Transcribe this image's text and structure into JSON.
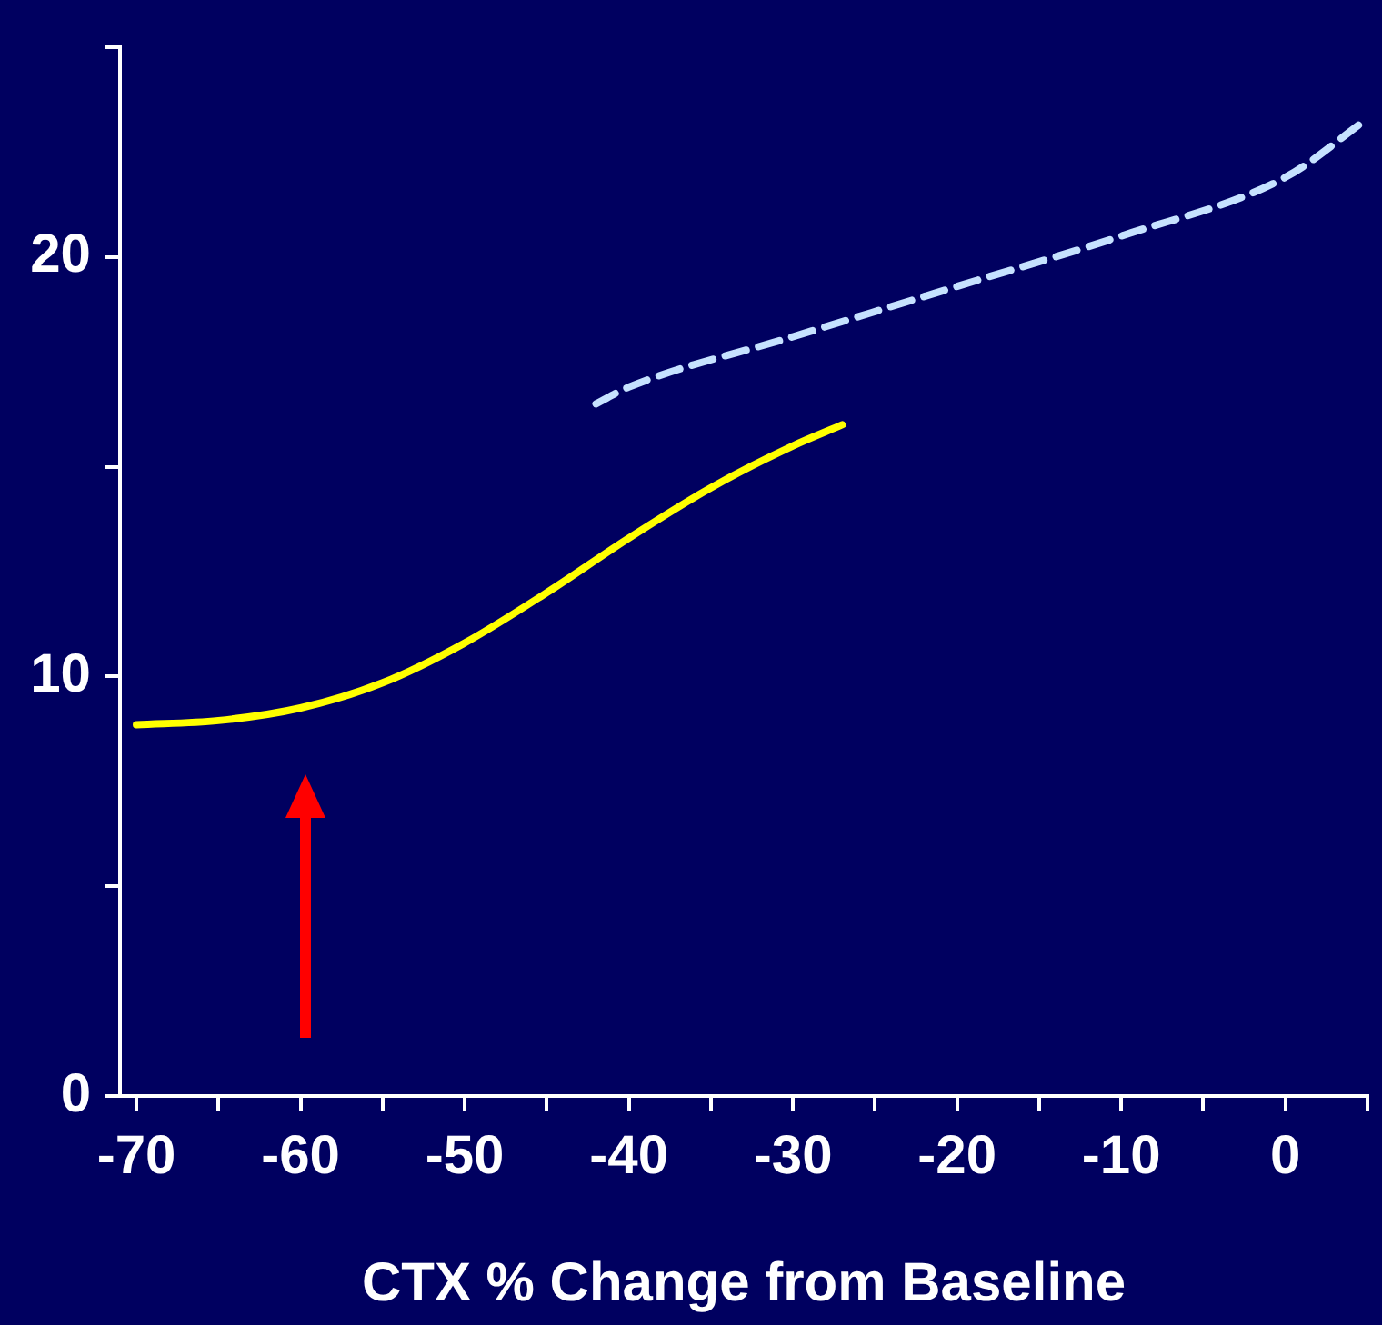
{
  "chart_data": {
    "type": "line",
    "xlabel": "CTX % Change from Baseline",
    "xlim": [
      -71,
      5
    ],
    "ylim": [
      0,
      25
    ],
    "xticks": [
      -70,
      {
        "value": -65,
        "label": null
      },
      -60,
      {
        "value": -55,
        "label": null
      },
      -50,
      {
        "value": -45,
        "label": null
      },
      -40,
      {
        "value": -35,
        "label": null
      },
      -30,
      {
        "value": -25,
        "label": null
      },
      -20,
      {
        "value": -15,
        "label": null
      },
      -10,
      {
        "value": -5,
        "label": null
      },
      0,
      {
        "value": 5,
        "label": null
      }
    ],
    "yticks": [
      0,
      {
        "value": 5,
        "label": null
      },
      10,
      {
        "value": 15,
        "label": null
      },
      20,
      {
        "value": 25,
        "label": null
      }
    ],
    "grid": false,
    "legend": false,
    "marker": "none",
    "series": [
      {
        "color": "#ffff00",
        "line_style": "solid",
        "x": [
          -70,
          -65,
          -60,
          -55,
          -50,
          -45,
          -40,
          -35,
          -30,
          -27
        ],
        "values": [
          8.85,
          8.95,
          9.25,
          9.85,
          10.8,
          12.0,
          13.3,
          14.5,
          15.5,
          16.0
        ]
      },
      {
        "color": "#c6e2ff",
        "line_style": "dashed",
        "x": [
          -42,
          -40,
          -30,
          -20,
          -10,
          0,
          5
        ],
        "values": [
          16.5,
          16.9,
          18.1,
          19.3,
          20.5,
          21.9,
          23.3
        ]
      }
    ]
  }
}
